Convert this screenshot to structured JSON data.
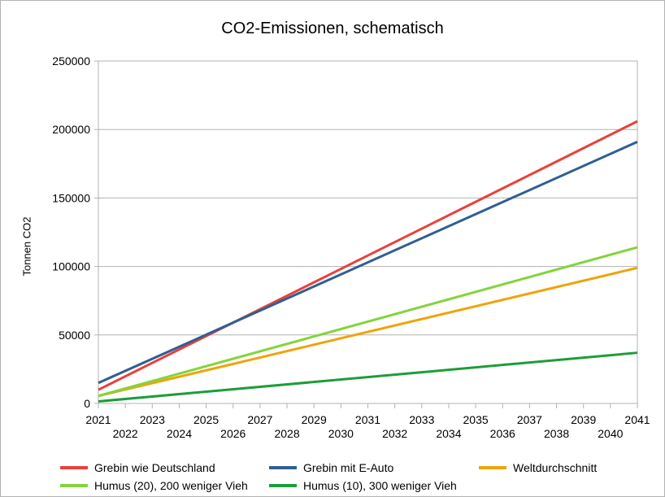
{
  "chart_data": {
    "type": "line",
    "title": "CO2-Emissionen, schematisch",
    "xlabel": "",
    "ylabel": "Tonnen CO2",
    "x": [
      2021,
      2041
    ],
    "xlim": [
      2021,
      2041
    ],
    "ylim": [
      0,
      250000
    ],
    "x_ticks_top": [
      "2021",
      "2023",
      "2025",
      "2027",
      "2029",
      "2031",
      "2033",
      "2035",
      "2037",
      "2039",
      "2041"
    ],
    "x_ticks_bottom": [
      "2022",
      "2024",
      "2026",
      "2028",
      "2030",
      "2032",
      "2034",
      "2036",
      "2038",
      "2040"
    ],
    "y_ticks": [
      "0",
      "50000",
      "100000",
      "150000",
      "200000",
      "250000"
    ],
    "y_tick_values": [
      0,
      50000,
      100000,
      150000,
      200000,
      250000
    ],
    "grid": true,
    "legend_position": "bottom",
    "series": [
      {
        "name": "Grebin wie Deutschland",
        "color": "#e8413c",
        "values": [
          10000,
          206000
        ]
      },
      {
        "name": "Grebin mit E-Auto",
        "color": "#2f5f93",
        "values": [
          15000,
          191000
        ]
      },
      {
        "name": "Weltdurchschnitt",
        "color": "#f0a30a",
        "values": [
          5500,
          99000
        ]
      },
      {
        "name": "Humus (20), 200 weniger Vieh",
        "color": "#83d43c",
        "values": [
          5500,
          114000
        ]
      },
      {
        "name": "Humus (10), 300 weniger Vieh",
        "color": "#1e9c3a",
        "values": [
          1500,
          37000
        ]
      }
    ]
  }
}
